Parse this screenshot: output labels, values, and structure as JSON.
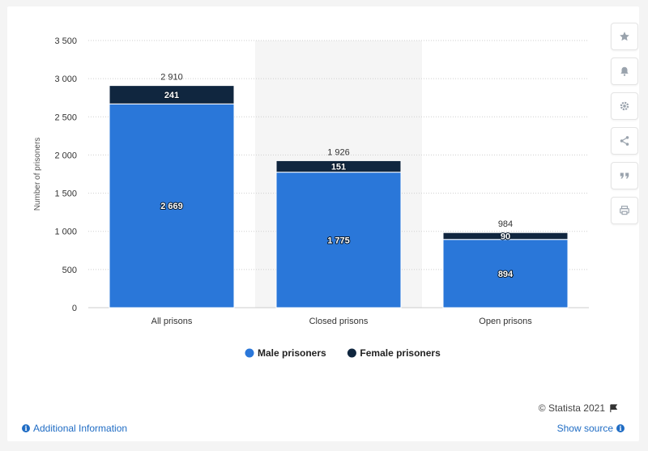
{
  "chart_data": {
    "type": "bar",
    "stacked": true,
    "categories": [
      "All prisons",
      "Closed prisons",
      "Open prisons"
    ],
    "series": [
      {
        "name": "Male prisoners",
        "color": "#2a77d9",
        "values": [
          2669,
          1775,
          894
        ],
        "labels": [
          "2 669",
          "1 775",
          "894"
        ]
      },
      {
        "name": "Female prisoners",
        "color": "#10263f",
        "values": [
          241,
          151,
          90
        ],
        "labels": [
          "241",
          "151",
          "90"
        ]
      }
    ],
    "totals": [
      2910,
      1926,
      984
    ],
    "total_labels": [
      "2 910",
      "1 926",
      "984"
    ],
    "ylabel": "Number of prisoners",
    "ylim": [
      0,
      3500
    ],
    "yticks": [
      0,
      500,
      1000,
      1500,
      2000,
      2500,
      3000,
      3500
    ],
    "ytick_labels": [
      "0",
      "500",
      "1 000",
      "1 500",
      "2 000",
      "2 500",
      "3 000",
      "3 500"
    ],
    "highlighted_category": "Closed prisons",
    "grid": true,
    "legend_position": "bottom-center"
  },
  "footer": {
    "credit": "© Statista 2021",
    "additional_info": "Additional Information",
    "show_source": "Show source"
  },
  "toolbar": {
    "icons": [
      "star-icon",
      "bell-icon",
      "gear-icon",
      "share-icon",
      "quote-icon",
      "print-icon"
    ]
  }
}
